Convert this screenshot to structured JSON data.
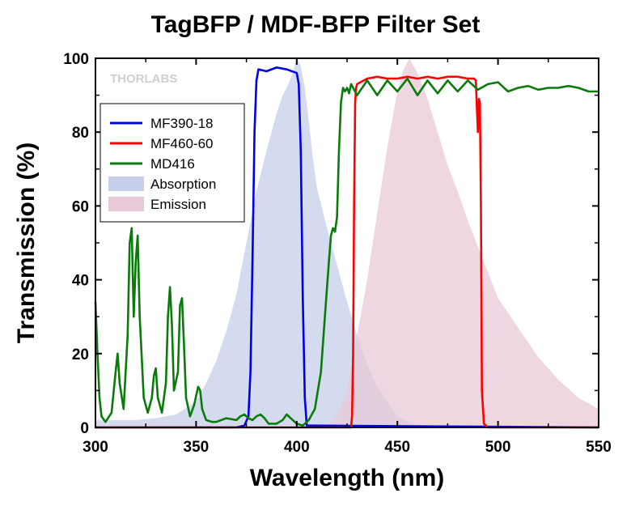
{
  "chart_data": {
    "type": "line",
    "title": "TagBFP / MDF-BFP Filter Set",
    "xlabel": "Wavelength (nm)",
    "ylabel": "Transmission (%)",
    "xlim": [
      300,
      550
    ],
    "ylim": [
      0,
      100
    ],
    "xticks": [
      300,
      350,
      400,
      450,
      500,
      550
    ],
    "yticks": [
      0,
      20,
      40,
      60,
      80,
      100
    ],
    "grid": false,
    "legend_position": "top-left",
    "watermark": "THORLABS",
    "series": [
      {
        "name": "MF390-18",
        "kind": "line",
        "color": "#0000e6",
        "x": [
          300,
          370,
          374,
          376,
          377,
          378,
          379,
          380,
          381,
          385,
          390,
          395,
          400,
          401,
          402,
          403,
          404,
          405,
          550
        ],
        "y": [
          0,
          0,
          0.5,
          3,
          15,
          45,
          80,
          94,
          97,
          96.5,
          97.5,
          97,
          96,
          93,
          75,
          35,
          8,
          0.5,
          0
        ]
      },
      {
        "name": "MF460-60",
        "kind": "line",
        "color": "#ff0000",
        "x": [
          300,
          427,
          427.5,
          428,
          428.5,
          429,
          429.5,
          430,
          435,
          440,
          445,
          450,
          455,
          460,
          465,
          470,
          475,
          480,
          485,
          488,
          489,
          490,
          490.5,
          491,
          491.5,
          492,
          493,
          495,
          550
        ],
        "y": [
          0,
          0,
          3,
          20,
          60,
          88,
          92,
          93,
          94.5,
          95,
          94.5,
          94.5,
          95,
          94.5,
          95,
          94.5,
          95,
          95,
          94.5,
          94.5,
          94,
          80,
          89,
          88,
          60,
          10,
          1,
          0,
          0
        ]
      },
      {
        "name": "MD416",
        "kind": "line",
        "color": "#0a7a0a",
        "x": [
          300,
          301,
          302,
          303,
          305,
          308,
          310,
          311,
          312,
          314,
          316,
          317,
          318,
          319,
          320,
          321,
          322,
          324,
          326,
          328,
          329,
          330,
          331,
          333,
          335,
          336,
          337,
          338,
          339,
          341,
          342,
          343,
          344,
          345,
          347,
          349,
          351,
          352,
          353,
          355,
          358,
          360,
          365,
          370,
          372,
          374,
          376,
          378,
          380,
          382,
          384,
          386,
          390,
          393,
          395,
          397,
          400,
          403,
          406,
          409,
          412,
          414,
          416,
          417,
          418,
          419,
          420,
          421,
          422,
          423,
          424,
          425,
          426,
          427,
          430,
          435,
          440,
          445,
          450,
          455,
          460,
          465,
          470,
          475,
          480,
          485,
          490,
          495,
          500,
          505,
          510,
          515,
          520,
          525,
          530,
          535,
          540,
          545,
          550
        ],
        "y": [
          34,
          20,
          8,
          3,
          1.5,
          4,
          15,
          20,
          12,
          5,
          25,
          50,
          54,
          30,
          45,
          52,
          30,
          8,
          4,
          8,
          14,
          16,
          8,
          4,
          12,
          30,
          38,
          28,
          10,
          15,
          33,
          35,
          22,
          8,
          3,
          6,
          11,
          10,
          5,
          2,
          1.5,
          1.5,
          2.5,
          2,
          3,
          3.5,
          2.5,
          2,
          3,
          3.5,
          2.5,
          1,
          1,
          2,
          3.5,
          2.5,
          1,
          0.5,
          2,
          5,
          15,
          30,
          45,
          52,
          54,
          53,
          57,
          75,
          88,
          92,
          91,
          92,
          90.5,
          93,
          90,
          94,
          90,
          94,
          91,
          94.5,
          90,
          94,
          90.5,
          94,
          91,
          94,
          91.5,
          93,
          93.5,
          91,
          92,
          92.5,
          91.5,
          92,
          92,
          92.5,
          92,
          91,
          91
        ]
      },
      {
        "name": "Absorption",
        "kind": "area",
        "color": "#c5cfea",
        "x": [
          300,
          310,
          320,
          330,
          340,
          350,
          355,
          360,
          365,
          370,
          375,
          380,
          385,
          390,
          393,
          395,
          398,
          400,
          402,
          404,
          406,
          408,
          410,
          415,
          420,
          425,
          430,
          435,
          440,
          445,
          450,
          455,
          460,
          470,
          550
        ],
        "y": [
          2,
          2,
          2,
          2.5,
          3.5,
          7,
          12,
          18,
          26,
          36,
          50,
          64,
          75,
          85,
          90,
          92,
          96,
          100,
          98,
          92,
          83,
          73,
          65,
          54,
          44,
          34,
          25,
          17,
          11,
          7,
          3,
          1.5,
          0.5,
          0,
          0
        ]
      },
      {
        "name": "Emission",
        "kind": "area",
        "color": "#e8c9d7",
        "x": [
          300,
          415,
          420,
          425,
          430,
          435,
          440,
          445,
          450,
          453,
          456,
          460,
          465,
          470,
          475,
          480,
          485,
          490,
          495,
          500,
          510,
          520,
          530,
          540,
          550
        ],
        "y": [
          0,
          0,
          3,
          10,
          25,
          40,
          58,
          76,
          91,
          97,
          100,
          96,
          89,
          80,
          71,
          64,
          56,
          49,
          42,
          35,
          27,
          19,
          13,
          8,
          5
        ]
      }
    ]
  }
}
